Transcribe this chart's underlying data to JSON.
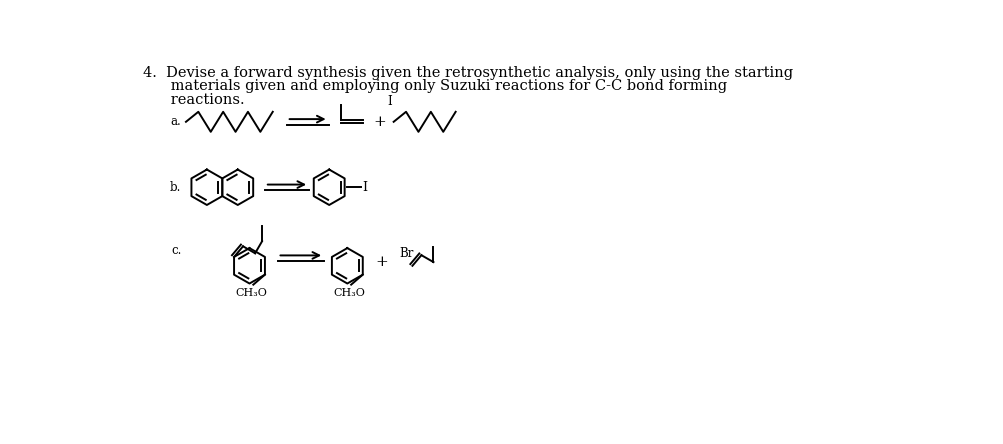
{
  "bg_color": "#ffffff",
  "text_color": "#000000",
  "title_line1": "4.  Devise a forward synthesis given the retrosynthetic analysis, only using the starting",
  "title_line2": "      materials given and employing only Suzuki reactions for C-C bond forming",
  "title_line3": "      reactions.",
  "label_a": "a.",
  "label_b": "b.",
  "label_c": "c.",
  "ch3o_label": "CH₃O",
  "br_label": "Br",
  "i_label": "I",
  "plus_sign": "+",
  "lw": 1.4,
  "font_size_title": 10.5,
  "font_size_label": 8.5
}
